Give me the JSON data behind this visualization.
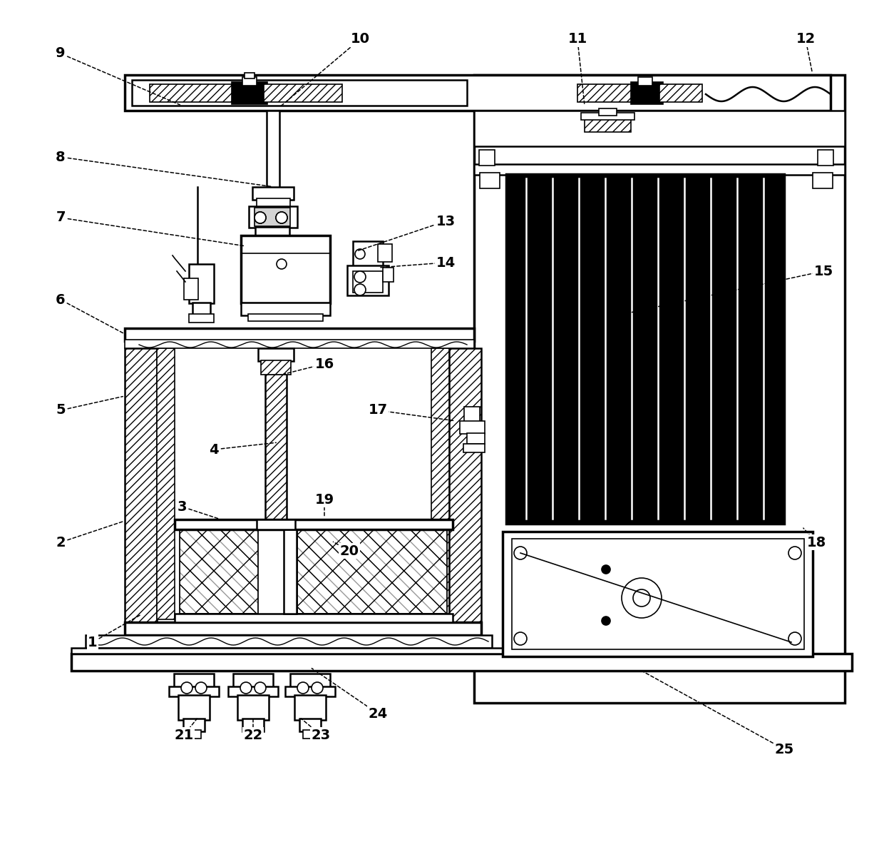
{
  "bg_color": "#ffffff",
  "lw_main": 2.5,
  "lw_med": 1.8,
  "lw_thin": 1.2,
  "leaders": [
    [
      "9",
      85,
      75,
      255,
      148
    ],
    [
      "10",
      505,
      55,
      390,
      152
    ],
    [
      "11",
      810,
      55,
      820,
      148
    ],
    [
      "12",
      1130,
      55,
      1140,
      105
    ],
    [
      "8",
      85,
      220,
      385,
      262
    ],
    [
      "7",
      85,
      305,
      345,
      345
    ],
    [
      "6",
      85,
      420,
      175,
      468
    ],
    [
      "13",
      625,
      310,
      500,
      352
    ],
    [
      "14",
      625,
      368,
      530,
      375
    ],
    [
      "15",
      1155,
      380,
      875,
      440
    ],
    [
      "16",
      455,
      510,
      395,
      525
    ],
    [
      "17",
      530,
      575,
      640,
      590
    ],
    [
      "5",
      85,
      575,
      175,
      555
    ],
    [
      "4",
      300,
      630,
      390,
      620
    ],
    [
      "3",
      255,
      710,
      310,
      728
    ],
    [
      "19",
      455,
      700,
      455,
      728
    ],
    [
      "2",
      85,
      760,
      175,
      730
    ],
    [
      "20",
      490,
      772,
      465,
      758
    ],
    [
      "1",
      130,
      900,
      200,
      860
    ],
    [
      "21",
      258,
      1030,
      278,
      1005
    ],
    [
      "22",
      355,
      1030,
      355,
      1005
    ],
    [
      "23",
      450,
      1030,
      420,
      1005
    ],
    [
      "24",
      530,
      1000,
      435,
      935
    ],
    [
      "25",
      1100,
      1050,
      900,
      940
    ],
    [
      "18",
      1145,
      760,
      1125,
      738
    ]
  ]
}
